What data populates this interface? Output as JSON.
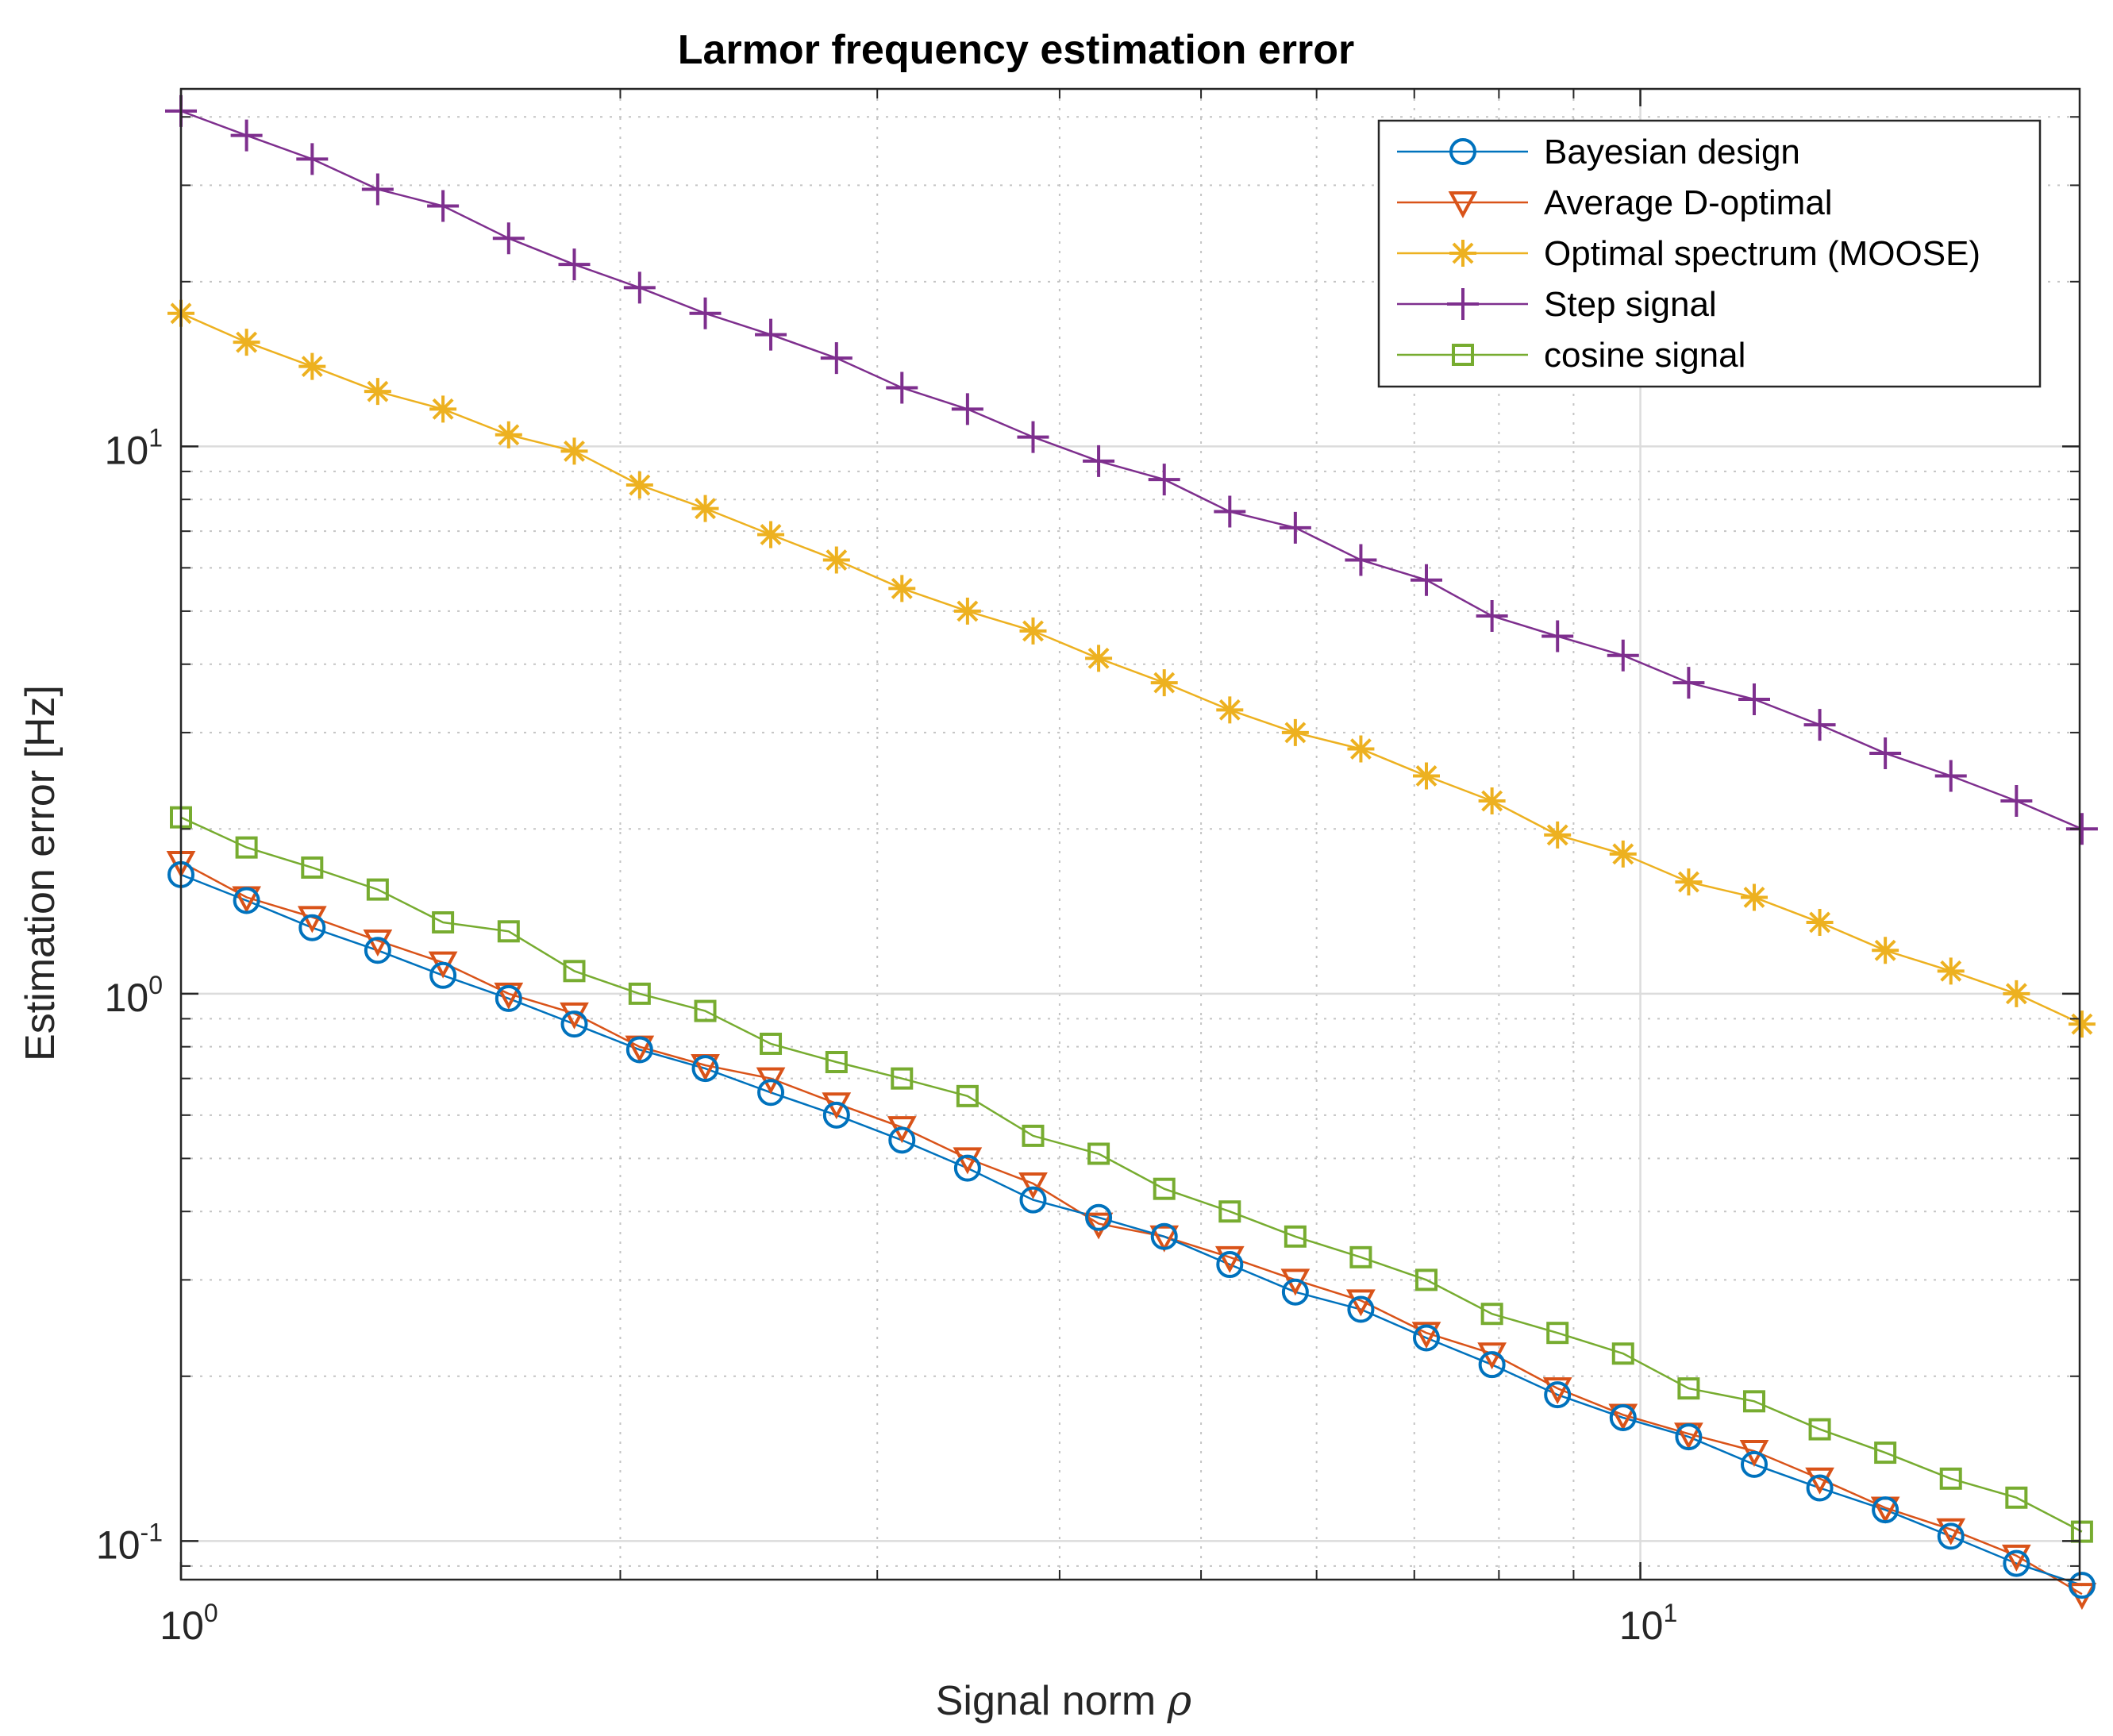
{
  "chart_data": {
    "type": "line",
    "title": "Larmor frequency estimation error",
    "xlabel": "Signal norm",
    "xlabel_symbol": "ρ",
    "ylabel": "Estimation error [Hz]",
    "xscale": "log",
    "yscale": "log",
    "xlim": [
      1,
      20
    ],
    "ylim": [
      0.085,
      45
    ],
    "grid": true,
    "legend_position": "top-right",
    "x_ticks": [
      {
        "value": 1,
        "base": "10",
        "exp": "0"
      },
      {
        "value": 10,
        "base": "10",
        "exp": "1"
      }
    ],
    "y_ticks": [
      {
        "value": 0.1,
        "base": "10",
        "exp": "-1"
      },
      {
        "value": 1,
        "base": "10",
        "exp": "0"
      },
      {
        "value": 10,
        "base": "10",
        "exp": "1"
      }
    ],
    "x": [
      1.0,
      1.109,
      1.23,
      1.364,
      1.512,
      1.677,
      1.86,
      2.062,
      2.287,
      2.536,
      2.813,
      3.119,
      3.459,
      3.836,
      4.254,
      4.718,
      5.232,
      5.802,
      6.434,
      7.135,
      7.913,
      8.775,
      9.731,
      10.792,
      11.968,
      13.272,
      14.718,
      16.322,
      18.101,
      20.073
    ],
    "series": [
      {
        "name": "Bayesian design",
        "color": "#0072BD",
        "marker": "circle",
        "values": [
          1.65,
          1.48,
          1.32,
          1.2,
          1.08,
          0.98,
          0.88,
          0.79,
          0.73,
          0.66,
          0.6,
          0.54,
          0.48,
          0.42,
          0.39,
          0.36,
          0.32,
          0.285,
          0.265,
          0.235,
          0.21,
          0.185,
          0.168,
          0.155,
          0.138,
          0.125,
          0.114,
          0.102,
          0.091,
          0.083
        ]
      },
      {
        "name": "Average D-optimal",
        "color": "#D95319",
        "marker": "triangle-down",
        "values": [
          1.74,
          1.5,
          1.38,
          1.25,
          1.14,
          1.0,
          0.92,
          0.8,
          0.74,
          0.7,
          0.63,
          0.57,
          0.5,
          0.45,
          0.38,
          0.36,
          0.33,
          0.3,
          0.275,
          0.24,
          0.22,
          0.19,
          0.17,
          0.157,
          0.146,
          0.13,
          0.115,
          0.105,
          0.094,
          0.08
        ]
      },
      {
        "name": "Optimal spectrum (MOOSE)",
        "color": "#EDB120",
        "marker": "asterisk",
        "values": [
          17.5,
          15.5,
          14.0,
          12.6,
          11.7,
          10.5,
          9.8,
          8.5,
          7.7,
          6.9,
          6.2,
          5.5,
          5.0,
          4.6,
          4.1,
          3.7,
          3.3,
          3.0,
          2.8,
          2.5,
          2.25,
          1.95,
          1.8,
          1.6,
          1.5,
          1.35,
          1.2,
          1.1,
          1.0,
          0.88
        ]
      },
      {
        "name": "Step signal",
        "color": "#7E2F8E",
        "marker": "plus",
        "values": [
          41,
          37,
          33.5,
          29.5,
          27.5,
          24,
          21.5,
          19.5,
          17.5,
          16,
          14.5,
          12.8,
          11.7,
          10.4,
          9.4,
          8.7,
          7.6,
          7.1,
          6.2,
          5.7,
          4.9,
          4.5,
          4.15,
          3.7,
          3.45,
          3.1,
          2.75,
          2.5,
          2.25,
          2.0
        ]
      },
      {
        "name": "cosine signal",
        "color": "#77AC30",
        "marker": "square",
        "values": [
          2.1,
          1.85,
          1.7,
          1.55,
          1.35,
          1.3,
          1.1,
          1.0,
          0.93,
          0.81,
          0.75,
          0.7,
          0.65,
          0.55,
          0.51,
          0.44,
          0.4,
          0.36,
          0.33,
          0.3,
          0.26,
          0.24,
          0.22,
          0.19,
          0.18,
          0.16,
          0.145,
          0.13,
          0.12,
          0.104
        ]
      }
    ]
  }
}
